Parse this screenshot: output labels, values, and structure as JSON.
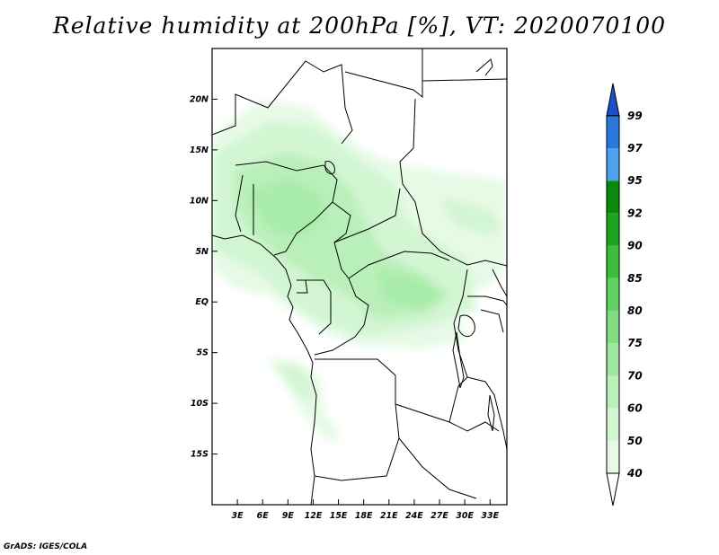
{
  "title": "Relative humidity at 200hPa [%], VT: 2020070100",
  "credit": "GrADS: IGES/COLA",
  "map": {
    "region": "Central Africa",
    "lon_ticks": [
      {
        "value": 3,
        "label": "3E"
      },
      {
        "value": 6,
        "label": "6E"
      },
      {
        "value": 9,
        "label": "9E"
      },
      {
        "value": 12,
        "label": "12E"
      },
      {
        "value": 15,
        "label": "15E"
      },
      {
        "value": 18,
        "label": "18E"
      },
      {
        "value": 21,
        "label": "21E"
      },
      {
        "value": 24,
        "label": "24E"
      },
      {
        "value": 27,
        "label": "27E"
      },
      {
        "value": 30,
        "label": "30E"
      },
      {
        "value": 33,
        "label": "33E"
      }
    ],
    "lat_ticks": [
      {
        "value": 20,
        "label": "20N"
      },
      {
        "value": 15,
        "label": "15N"
      },
      {
        "value": 10,
        "label": "10N"
      },
      {
        "value": 5,
        "label": "5N"
      },
      {
        "value": 0,
        "label": "EQ"
      },
      {
        "value": -5,
        "label": "5S"
      },
      {
        "value": -10,
        "label": "10S"
      },
      {
        "value": -15,
        "label": "15S"
      }
    ],
    "lon_range": [
      0,
      35
    ],
    "lat_range": [
      -20,
      25
    ]
  },
  "colorbar": {
    "levels": [
      "40",
      "50",
      "60",
      "70",
      "75",
      "80",
      "85",
      "90",
      "92",
      "95",
      "97",
      "99"
    ],
    "colors": [
      "#ffffff",
      "#e6fae6",
      "#d2f5d2",
      "#b9efb9",
      "#a0e6a0",
      "#82dc82",
      "#5fd25f",
      "#3cbe3c",
      "#1ea51e",
      "#0a8a0a",
      "#50a0ee",
      "#2a78dc",
      "#1a50c8"
    ],
    "outline_color": "#000000"
  }
}
